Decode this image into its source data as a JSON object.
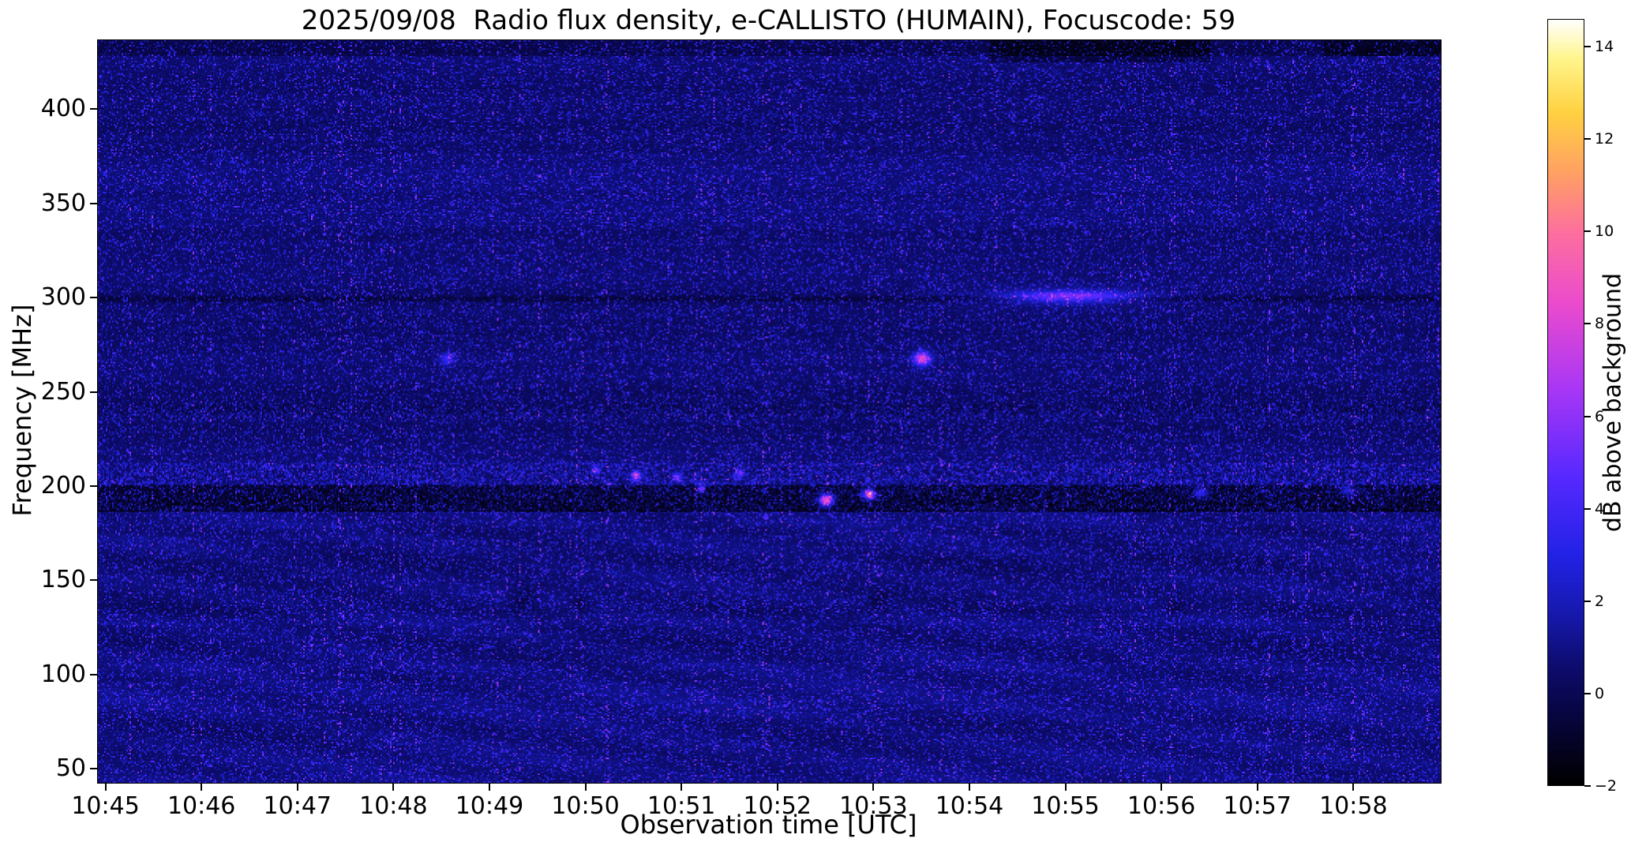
{
  "chart_data": {
    "type": "heatmap",
    "title": "2025/09/08  Radio flux density, e-CALLISTO (HUMAIN), Focuscode: 59",
    "xlabel": "Observation time [UTC]",
    "ylabel": "Frequency [MHz]",
    "colorbar_label": "dB above background",
    "x_ticks": [
      "10:45",
      "10:46",
      "10:47",
      "10:48",
      "10:49",
      "10:50",
      "10:51",
      "10:52",
      "10:53",
      "10:54",
      "10:55",
      "10:56",
      "10:57",
      "10:58"
    ],
    "y_ticks": [
      400,
      350,
      300,
      250,
      200,
      150,
      100,
      50
    ],
    "freq_range_mhz": [
      43,
      437
    ],
    "time_range_utc": [
      "10:45",
      "10:59"
    ],
    "time_unit": "minutes after 10:45 UTC",
    "colorbar_ticks": [
      -2,
      0,
      2,
      4,
      6,
      8,
      10,
      12,
      14
    ],
    "colorbar_range_db": [
      -2,
      14.6
    ],
    "grid": false,
    "legend": false,
    "colors": {
      "figure_background": "#ffffff",
      "axes_text": "#000000",
      "spectrogram_background": "#0b0b66"
    },
    "colormap_stops": [
      [
        0.0,
        0,
        0,
        0
      ],
      [
        0.1,
        8,
        6,
        70
      ],
      [
        0.155,
        13,
        12,
        110
      ],
      [
        0.22,
        22,
        24,
        170
      ],
      [
        0.3,
        34,
        34,
        230
      ],
      [
        0.4,
        85,
        40,
        255
      ],
      [
        0.52,
        170,
        55,
        245
      ],
      [
        0.63,
        235,
        75,
        205
      ],
      [
        0.72,
        253,
        110,
        160
      ],
      [
        0.8,
        255,
        160,
        100
      ],
      [
        0.88,
        255,
        210,
        65
      ],
      [
        0.95,
        255,
        245,
        140
      ],
      [
        1.0,
        255,
        255,
        252
      ]
    ],
    "noise": {
      "base_db": 0.35,
      "row_variation_db": 0.3,
      "speckle_amp_db": 4.2,
      "speckle_exponent": 7,
      "fine_noise_db": 0.5,
      "column_streak_prob": 0.12,
      "column_streak_extra": 1.0,
      "wavy_below_mhz": 190,
      "wavy_amp_db": 0.22,
      "seed": 20250908
    },
    "features": [
      {
        "kind": "band",
        "f0": 187,
        "f1": 201,
        "amp_db": -1.9
      },
      {
        "kind": "speckle_band",
        "f0": 188,
        "f1": 200,
        "amp_db": 2.6
      },
      {
        "kind": "speckle_band",
        "f0": 200,
        "f1": 213,
        "amp_db": 2.8
      },
      {
        "kind": "band",
        "f0": 201,
        "f1": 213,
        "amp_db": -0.25
      },
      {
        "kind": "texture_band",
        "f0": 236,
        "f1": 244,
        "contrast_db": 0.75
      },
      {
        "kind": "line",
        "f": 300,
        "halfwidth_mhz": 1.6,
        "amp_db": -0.85
      },
      {
        "kind": "line",
        "f": 300,
        "halfwidth_mhz": 6.0,
        "amp_db": -0.25
      },
      {
        "kind": "band",
        "f0": 429,
        "f1": 437,
        "amp_db": -0.65
      },
      {
        "kind": "rect",
        "t0": 9.2,
        "t1": 11.5,
        "f0": 426,
        "f1": 437,
        "amp_db": -1.1
      },
      {
        "kind": "rect",
        "t0": 12.7,
        "t1": 14.1,
        "f0": 429,
        "f1": 437,
        "amp_db": -0.9
      },
      {
        "kind": "blob",
        "t": 10.05,
        "f": 301,
        "sigma_t": 0.42,
        "sigma_f": 2.0,
        "amp_db": 4.6
      },
      {
        "kind": "blob",
        "t": 10.05,
        "f": 301,
        "sigma_t": 0.85,
        "sigma_f": 4.0,
        "amp_db": 1.1
      },
      {
        "kind": "blob",
        "t": 3.55,
        "f": 268,
        "sigma_t": 0.05,
        "sigma_f": 2.2,
        "amp_db": 3.4
      },
      {
        "kind": "blob",
        "t": 8.5,
        "f": 268,
        "sigma_t": 0.06,
        "sigma_f": 2.6,
        "amp_db": 7.5
      },
      {
        "kind": "blob",
        "t": 5.1,
        "f": 209,
        "sigma_t": 0.03,
        "sigma_f": 1.5,
        "amp_db": 4.0
      },
      {
        "kind": "blob",
        "t": 5.52,
        "f": 206,
        "sigma_t": 0.035,
        "sigma_f": 1.8,
        "amp_db": 6.0
      },
      {
        "kind": "blob",
        "t": 5.95,
        "f": 205,
        "sigma_t": 0.03,
        "sigma_f": 1.6,
        "amp_db": 5.0
      },
      {
        "kind": "blob",
        "t": 6.2,
        "f": 199,
        "sigma_t": 0.03,
        "sigma_f": 1.8,
        "amp_db": 5.5
      },
      {
        "kind": "blob",
        "t": 6.6,
        "f": 207,
        "sigma_t": 0.03,
        "sigma_f": 1.6,
        "amp_db": 4.5
      },
      {
        "kind": "blob",
        "t": 7.5,
        "f": 193,
        "sigma_t": 0.05,
        "sigma_f": 2.2,
        "amp_db": 10.0
      },
      {
        "kind": "blob",
        "t": 7.95,
        "f": 196,
        "sigma_t": 0.04,
        "sigma_f": 2.0,
        "amp_db": 10.0
      },
      {
        "kind": "blob",
        "t": 11.42,
        "f": 197,
        "sigma_t": 0.05,
        "sigma_f": 2.0,
        "amp_db": 4.5
      },
      {
        "kind": "blob",
        "t": 12.95,
        "f": 198,
        "sigma_t": 0.06,
        "sigma_f": 2.0,
        "amp_db": 3.5
      },
      {
        "kind": "blob",
        "t": 4.35,
        "f": 141,
        "sigma_t": 0.1,
        "sigma_f": 4.0,
        "amp_db": -1.3
      },
      {
        "kind": "blob",
        "t": 4.95,
        "f": 138,
        "sigma_t": 0.07,
        "sigma_f": 3.0,
        "amp_db": -1.1
      },
      {
        "kind": "blob",
        "t": 8.05,
        "f": 139,
        "sigma_t": 0.07,
        "sigma_f": 3.0,
        "amp_db": -1.1
      },
      {
        "kind": "blob",
        "t": 11.15,
        "f": 136,
        "sigma_t": 0.08,
        "sigma_f": 3.0,
        "amp_db": -0.9
      }
    ]
  }
}
